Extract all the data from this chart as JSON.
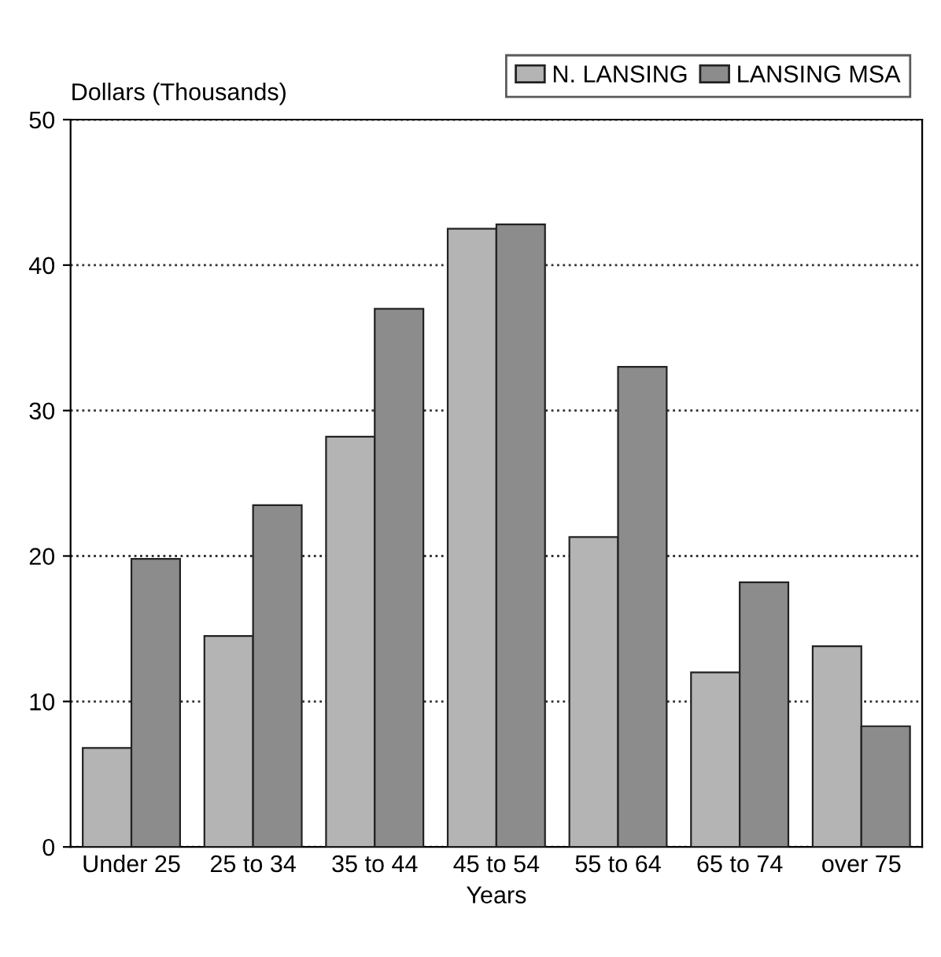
{
  "chart_data": {
    "type": "bar",
    "ylabel": "Dollars (Thousands)",
    "xlabel": "Years",
    "categories": [
      "Under 25",
      "25 to 34",
      "35 to 44",
      "45 to 54",
      "55 to 64",
      "65 to 74",
      "over 75"
    ],
    "series": [
      {
        "name": "N. LANSING",
        "color": "#b4b4b4",
        "values": [
          6.8,
          14.5,
          28.2,
          42.5,
          21.3,
          12.0,
          13.8
        ]
      },
      {
        "name": "LANSING MSA",
        "color": "#8c8c8c",
        "values": [
          19.8,
          23.5,
          37.0,
          42.8,
          33.0,
          18.2,
          8.3
        ]
      }
    ],
    "ylim": [
      0,
      50
    ],
    "yticks": [
      0,
      10,
      20,
      30,
      40,
      50
    ],
    "grid": "y",
    "legend": "top right"
  }
}
